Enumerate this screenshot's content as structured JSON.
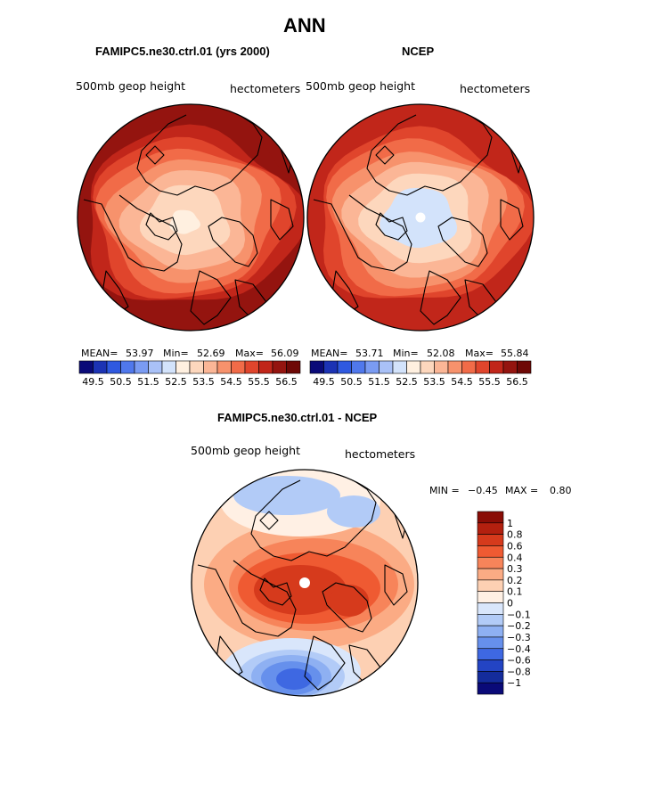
{
  "figure": {
    "title": "ANN",
    "panel_left": {
      "case_title": "FAMIPC5.ne30.ctrl.01 (yrs 2000)",
      "variable": "500mb geop height",
      "units": "hectometers",
      "mean_label": "MEAN=",
      "mean": "53.97",
      "min_label": "Min=",
      "min": "52.69",
      "max_label": "Max=",
      "max": "56.09"
    },
    "panel_right": {
      "case_title": "NCEP",
      "variable": "500mb geop height",
      "units": "hectometers",
      "mean_label": "MEAN=",
      "mean": "53.71",
      "min_label": "Min=",
      "min": "52.08",
      "max_label": "Max=",
      "max": "55.84"
    },
    "panel_diff": {
      "case_title": "FAMIPC5.ne30.ctrl.01 - NCEP",
      "variable": "500mb geop height",
      "units": "hectometers",
      "min_label": "MIN =",
      "min": "−0.45",
      "max_label": "MAX =",
      "max": "0.80"
    }
  },
  "chart_data": [
    {
      "type": "heatmap",
      "title": "FAMIPC5.ne30.ctrl.01 (yrs 2000)",
      "projection": "north-polar-stereographic",
      "variable": "500mb geop height",
      "units": "hectometers",
      "mean": 53.97,
      "min": 52.69,
      "max": 56.09,
      "contour_levels": [
        49.5,
        50,
        50.5,
        51,
        51.5,
        52,
        52.5,
        53,
        53.5,
        54,
        54.5,
        55,
        55.5,
        56,
        56.5
      ],
      "colorbar_tick_labels": [
        "49.5",
        "50.5",
        "51.5",
        "52.5",
        "53.5",
        "54.5",
        "55.5",
        "56.5"
      ],
      "colors": [
        "#0a0a78",
        "#1c33b4",
        "#2f59e0",
        "#5078ec",
        "#7a9bf2",
        "#a9c1f7",
        "#d3e3fb",
        "#fff0e0",
        "#fdd7bd",
        "#fbb696",
        "#f7926c",
        "#f16b48",
        "#e0452c",
        "#c1261a",
        "#94140f",
        "#6e0806"
      ],
      "field_rings": [
        {
          "r": 0.12,
          "v": 52.8
        },
        {
          "r": 0.35,
          "v": 53.4
        },
        {
          "r": 0.5,
          "v": 53.8
        },
        {
          "r": 0.62,
          "v": 54.3
        },
        {
          "r": 0.72,
          "v": 54.8
        },
        {
          "r": 0.8,
          "v": 55.3
        },
        {
          "r": 0.88,
          "v": 55.7
        },
        {
          "r": 1.0,
          "v": 56.0
        }
      ]
    },
    {
      "type": "heatmap",
      "title": "NCEP",
      "projection": "north-polar-stereographic",
      "variable": "500mb geop height",
      "units": "hectometers",
      "mean": 53.71,
      "min": 52.08,
      "max": 55.84,
      "contour_levels": [
        49.5,
        50,
        50.5,
        51,
        51.5,
        52,
        52.5,
        53,
        53.5,
        54,
        54.5,
        55,
        55.5,
        56,
        56.5
      ],
      "colorbar_tick_labels": [
        "49.5",
        "50.5",
        "51.5",
        "52.5",
        "53.5",
        "54.5",
        "55.5",
        "56.5"
      ],
      "colors": [
        "#0a0a78",
        "#1c33b4",
        "#2f59e0",
        "#5078ec",
        "#7a9bf2",
        "#a9c1f7",
        "#d3e3fb",
        "#fff0e0",
        "#fdd7bd",
        "#fbb696",
        "#f7926c",
        "#f16b48",
        "#e0452c",
        "#c1261a",
        "#94140f",
        "#6e0806"
      ],
      "field_rings": [
        {
          "r": 0.3,
          "v": 52.3
        },
        {
          "r": 0.45,
          "v": 53.0
        },
        {
          "r": 0.58,
          "v": 53.7
        },
        {
          "r": 0.68,
          "v": 54.3
        },
        {
          "r": 0.78,
          "v": 54.8
        },
        {
          "r": 0.86,
          "v": 55.3
        },
        {
          "r": 1.0,
          "v": 55.7
        }
      ]
    },
    {
      "type": "heatmap",
      "title": "FAMIPC5.ne30.ctrl.01 - NCEP",
      "projection": "north-polar-stereographic",
      "variable": "500mb geop height",
      "units": "hectometers",
      "min": -0.45,
      "max": 0.8,
      "contour_levels": [
        -1,
        -0.8,
        -0.6,
        -0.4,
        -0.3,
        -0.2,
        -0.1,
        0,
        0.1,
        0.2,
        0.3,
        0.4,
        0.6,
        0.8,
        1
      ],
      "colorbar_tick_labels": [
        "1",
        "0.8",
        "0.6",
        "0.4",
        "0.3",
        "0.2",
        "0.1",
        "0",
        "−0.1",
        "−0.2",
        "−0.3",
        "−0.4",
        "−0.6",
        "−0.8",
        "−1"
      ],
      "colors": [
        "#8a0d06",
        "#b3200f",
        "#d63a1c",
        "#ef5a32",
        "#f7845a",
        "#fbab84",
        "#fdd0b3",
        "#fff0e4",
        "#d9e6fb",
        "#b2cbf7",
        "#8eb0f2",
        "#6690ec",
        "#3e68e2",
        "#2344c4",
        "#142c9c",
        "#0a0a78"
      ]
    }
  ]
}
